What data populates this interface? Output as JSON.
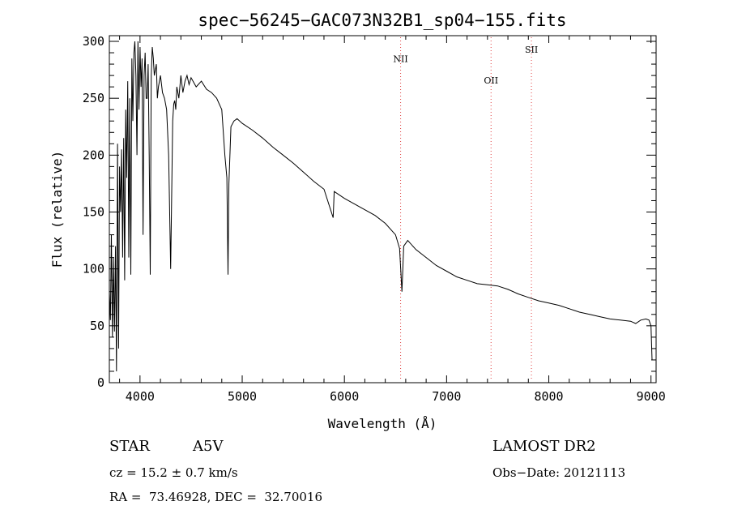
{
  "chart_data": {
    "type": "line",
    "title": "spec−56245−GAC073N32B1_sp04−155.fits",
    "xlabel": "Wavelength (Å)",
    "ylabel": "Flux (relative)",
    "xlim": [
      3700,
      9050
    ],
    "ylim": [
      0,
      305
    ],
    "x_ticks": [
      4000,
      5000,
      6000,
      7000,
      8000,
      9000
    ],
    "y_ticks": [
      0,
      50,
      100,
      150,
      200,
      250,
      300
    ],
    "grid": false,
    "series": [
      {
        "name": "flux",
        "color": "#000000",
        "x": [
          3700,
          3710,
          3720,
          3730,
          3740,
          3750,
          3760,
          3770,
          3780,
          3790,
          3800,
          3810,
          3820,
          3830,
          3840,
          3850,
          3860,
          3870,
          3880,
          3890,
          3900,
          3910,
          3920,
          3930,
          3940,
          3950,
          3960,
          3970,
          3980,
          3990,
          4000,
          4010,
          4020,
          4030,
          4040,
          4050,
          4060,
          4070,
          4080,
          4090,
          4100,
          4110,
          4120,
          4130,
          4140,
          4150,
          4160,
          4170,
          4180,
          4200,
          4220,
          4240,
          4260,
          4280,
          4300,
          4320,
          4330,
          4340,
          4350,
          4360,
          4380,
          4400,
          4420,
          4440,
          4460,
          4480,
          4500,
          4550,
          4600,
          4650,
          4700,
          4750,
          4800,
          4830,
          4850,
          4861,
          4870,
          4890,
          4920,
          4950,
          5000,
          5100,
          5200,
          5300,
          5400,
          5500,
          5600,
          5700,
          5800,
          5890,
          5900,
          6000,
          6100,
          6200,
          6300,
          6400,
          6500,
          6540,
          6563,
          6580,
          6620,
          6700,
          6800,
          6900,
          7000,
          7100,
          7200,
          7300,
          7400,
          7500,
          7600,
          7700,
          7800,
          7900,
          8000,
          8100,
          8200,
          8300,
          8400,
          8500,
          8600,
          8700,
          8800,
          8850,
          8900,
          8950,
          8980,
          9000,
          9010
        ],
        "values": [
          80,
          55,
          130,
          40,
          110,
          45,
          120,
          10,
          210,
          30,
          190,
          150,
          205,
          110,
          215,
          90,
          240,
          180,
          265,
          110,
          250,
          95,
          285,
          230,
          290,
          300,
          270,
          200,
          300,
          240,
          295,
          260,
          285,
          130,
          270,
          290,
          250,
          250,
          280,
          200,
          95,
          270,
          295,
          285,
          270,
          275,
          280,
          250,
          260,
          270,
          255,
          250,
          240,
          200,
          100,
          230,
          245,
          248,
          240,
          260,
          250,
          270,
          255,
          265,
          270,
          262,
          268,
          260,
          265,
          258,
          255,
          250,
          240,
          200,
          180,
          95,
          175,
          225,
          230,
          232,
          228,
          222,
          215,
          207,
          200,
          193,
          185,
          177,
          170,
          145,
          168,
          162,
          157,
          152,
          147,
          140,
          130,
          118,
          80,
          120,
          125,
          117,
          110,
          103,
          98,
          93,
          90,
          87,
          86,
          85,
          82,
          78,
          75,
          72,
          70,
          68,
          65,
          62,
          60,
          58,
          56,
          55,
          54,
          52,
          55,
          56,
          55,
          50,
          20
        ]
      }
    ],
    "line_markers": [
      {
        "label": "NII",
        "x": 6550,
        "label_y": 282
      },
      {
        "label": "OII",
        "x": 7435,
        "label_y": 263
      },
      {
        "label": "SII",
        "x": 7830,
        "label_y": 290
      }
    ]
  },
  "info": {
    "object_type": "STAR",
    "subclass": "A5V",
    "survey": "LAMOST DR2",
    "cz_line": "cz = 15.2 ± 0.7 km/s",
    "obs_date_line": "Obs−Date: 20121113",
    "coords_line": "RA =  73.46928, DEC =  32.70016"
  }
}
